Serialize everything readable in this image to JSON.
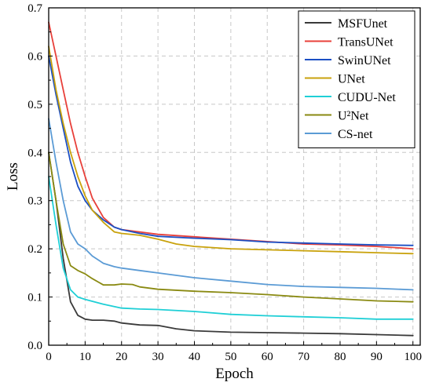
{
  "chart_data": {
    "type": "line",
    "title": "",
    "xlabel": "Epoch",
    "ylabel": "Loss",
    "xlim": [
      0,
      102
    ],
    "ylim": [
      0,
      0.7
    ],
    "xticks": [
      0,
      10,
      20,
      30,
      40,
      50,
      60,
      70,
      80,
      90,
      100
    ],
    "yticks": [
      0.0,
      0.1,
      0.2,
      0.3,
      0.4,
      0.5,
      0.6,
      0.7
    ],
    "grid": true,
    "legend_position": "top-right",
    "series": [
      {
        "name": "MSFUnet",
        "color": "#3a3a3a",
        "points": [
          [
            0,
            0.4
          ],
          [
            2,
            0.3
          ],
          [
            4,
            0.18
          ],
          [
            6,
            0.09
          ],
          [
            8,
            0.062
          ],
          [
            10,
            0.054
          ],
          [
            12,
            0.052
          ],
          [
            15,
            0.052
          ],
          [
            18,
            0.05
          ],
          [
            20,
            0.046
          ],
          [
            25,
            0.042
          ],
          [
            30,
            0.041
          ],
          [
            35,
            0.034
          ],
          [
            40,
            0.03
          ],
          [
            50,
            0.027
          ],
          [
            60,
            0.026
          ],
          [
            70,
            0.025
          ],
          [
            80,
            0.024
          ],
          [
            90,
            0.022
          ],
          [
            100,
            0.02
          ]
        ]
      },
      {
        "name": "TransUNet",
        "color": "#e8403a",
        "points": [
          [
            0,
            0.67
          ],
          [
            2,
            0.6
          ],
          [
            4,
            0.53
          ],
          [
            6,
            0.46
          ],
          [
            8,
            0.4
          ],
          [
            10,
            0.35
          ],
          [
            12,
            0.305
          ],
          [
            15,
            0.265
          ],
          [
            18,
            0.245
          ],
          [
            20,
            0.24
          ],
          [
            25,
            0.235
          ],
          [
            30,
            0.23
          ],
          [
            40,
            0.225
          ],
          [
            50,
            0.22
          ],
          [
            60,
            0.215
          ],
          [
            70,
            0.21
          ],
          [
            80,
            0.208
          ],
          [
            90,
            0.205
          ],
          [
            100,
            0.2
          ]
        ]
      },
      {
        "name": "SwinUNet",
        "color": "#1b4fc4",
        "points": [
          [
            0,
            0.6
          ],
          [
            2,
            0.52
          ],
          [
            4,
            0.45
          ],
          [
            6,
            0.38
          ],
          [
            8,
            0.33
          ],
          [
            10,
            0.3
          ],
          [
            12,
            0.28
          ],
          [
            15,
            0.26
          ],
          [
            18,
            0.245
          ],
          [
            20,
            0.24
          ],
          [
            25,
            0.232
          ],
          [
            30,
            0.226
          ],
          [
            40,
            0.222
          ],
          [
            50,
            0.219
          ],
          [
            60,
            0.214
          ],
          [
            70,
            0.212
          ],
          [
            80,
            0.21
          ],
          [
            90,
            0.208
          ],
          [
            100,
            0.207
          ]
        ]
      },
      {
        "name": "UNet",
        "color": "#c9a20c",
        "points": [
          [
            0,
            0.62
          ],
          [
            2,
            0.53
          ],
          [
            4,
            0.46
          ],
          [
            6,
            0.4
          ],
          [
            8,
            0.35
          ],
          [
            10,
            0.31
          ],
          [
            12,
            0.28
          ],
          [
            15,
            0.255
          ],
          [
            18,
            0.235
          ],
          [
            20,
            0.232
          ],
          [
            25,
            0.228
          ],
          [
            30,
            0.22
          ],
          [
            35,
            0.21
          ],
          [
            40,
            0.205
          ],
          [
            50,
            0.2
          ],
          [
            60,
            0.198
          ],
          [
            70,
            0.196
          ],
          [
            80,
            0.194
          ],
          [
            90,
            0.192
          ],
          [
            100,
            0.19
          ]
        ]
      },
      {
        "name": "CUDU-Net",
        "color": "#1fcfd6",
        "points": [
          [
            0,
            0.35
          ],
          [
            2,
            0.25
          ],
          [
            4,
            0.16
          ],
          [
            6,
            0.115
          ],
          [
            8,
            0.1
          ],
          [
            10,
            0.095
          ],
          [
            15,
            0.085
          ],
          [
            20,
            0.077
          ],
          [
            25,
            0.075
          ],
          [
            30,
            0.074
          ],
          [
            40,
            0.07
          ],
          [
            50,
            0.064
          ],
          [
            60,
            0.061
          ],
          [
            70,
            0.059
          ],
          [
            80,
            0.057
          ],
          [
            90,
            0.054
          ],
          [
            100,
            0.054
          ]
        ]
      },
      {
        "name": "U²Net",
        "color": "#8a8a12",
        "points": [
          [
            0,
            0.4
          ],
          [
            2,
            0.3
          ],
          [
            4,
            0.21
          ],
          [
            6,
            0.165
          ],
          [
            8,
            0.155
          ],
          [
            10,
            0.148
          ],
          [
            12,
            0.138
          ],
          [
            15,
            0.125
          ],
          [
            18,
            0.125
          ],
          [
            20,
            0.127
          ],
          [
            23,
            0.126
          ],
          [
            25,
            0.121
          ],
          [
            30,
            0.116
          ],
          [
            40,
            0.112
          ],
          [
            50,
            0.109
          ],
          [
            60,
            0.105
          ],
          [
            70,
            0.1
          ],
          [
            80,
            0.096
          ],
          [
            90,
            0.092
          ],
          [
            100,
            0.09
          ]
        ]
      },
      {
        "name": "CS-net",
        "color": "#5b9bd5",
        "points": [
          [
            0,
            0.47
          ],
          [
            2,
            0.38
          ],
          [
            4,
            0.3
          ],
          [
            6,
            0.235
          ],
          [
            8,
            0.21
          ],
          [
            10,
            0.2
          ],
          [
            12,
            0.185
          ],
          [
            15,
            0.17
          ],
          [
            18,
            0.163
          ],
          [
            20,
            0.16
          ],
          [
            25,
            0.155
          ],
          [
            30,
            0.15
          ],
          [
            40,
            0.14
          ],
          [
            50,
            0.133
          ],
          [
            60,
            0.126
          ],
          [
            70,
            0.122
          ],
          [
            80,
            0.12
          ],
          [
            90,
            0.118
          ],
          [
            100,
            0.115
          ]
        ]
      }
    ]
  }
}
